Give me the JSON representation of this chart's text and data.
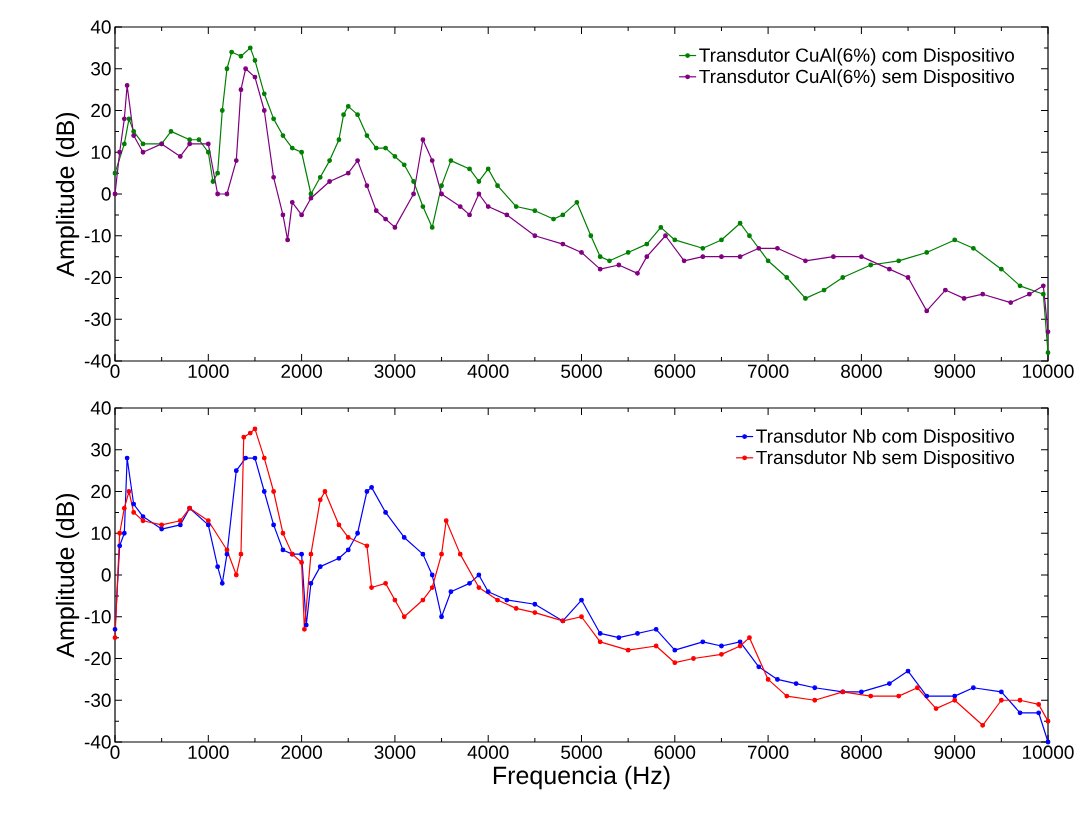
{
  "chart_data": [
    {
      "type": "line",
      "ylabel": "Amplitude (dB)",
      "xlim": [
        0,
        10000
      ],
      "ylim": [
        -40,
        40
      ],
      "xticks": [
        0,
        1000,
        2000,
        3000,
        4000,
        5000,
        6000,
        7000,
        8000,
        9000,
        10000
      ],
      "yticks": [
        -40,
        -30,
        -20,
        -10,
        0,
        10,
        20,
        30,
        40
      ],
      "legend": "top right",
      "marker": "circle",
      "grid": false,
      "series": [
        {
          "name": "Transdutor CuAl(6%) com Dispositivo",
          "color": "#008000",
          "x": [
            0,
            100,
            150,
            200,
            300,
            500,
            600,
            800,
            900,
            1000,
            1050,
            1100,
            1150,
            1200,
            1250,
            1350,
            1450,
            1500,
            1600,
            1700,
            1800,
            1900,
            2000,
            2100,
            2200,
            2300,
            2400,
            2450,
            2500,
            2600,
            2700,
            2800,
            2900,
            3000,
            3100,
            3200,
            3300,
            3400,
            3500,
            3600,
            3800,
            3900,
            4000,
            4100,
            4300,
            4500,
            4700,
            4800,
            4950,
            5100,
            5200,
            5300,
            5500,
            5700,
            5850,
            6000,
            6300,
            6500,
            6700,
            6800,
            7000,
            7200,
            7400,
            7600,
            7800,
            8100,
            8400,
            8700,
            9000,
            9200,
            9500,
            9700,
            9950,
            10000
          ],
          "values": [
            5,
            12,
            18,
            15,
            12,
            12,
            15,
            13,
            13,
            10,
            3,
            5,
            20,
            30,
            34,
            33,
            35,
            32,
            24,
            18,
            14,
            11,
            10,
            0,
            4,
            8,
            13,
            19,
            21,
            19,
            14,
            11,
            11,
            9,
            7,
            3,
            -3,
            -8,
            2,
            8,
            6,
            3,
            6,
            2,
            -3,
            -4,
            -6,
            -5,
            -2,
            -10,
            -15,
            -16,
            -14,
            -12,
            -8,
            -11,
            -13,
            -11,
            -7,
            -10,
            -16,
            -20,
            -25,
            -23,
            -20,
            -17,
            -16,
            -14,
            -11,
            -13,
            -18,
            -22,
            -24,
            -38
          ]
        },
        {
          "name": "Transdutor CuAl(6%) sem Dispositivo",
          "color": "#800080",
          "x": [
            0,
            50,
            100,
            130,
            200,
            300,
            500,
            700,
            800,
            1000,
            1100,
            1200,
            1300,
            1350,
            1400,
            1500,
            1600,
            1700,
            1800,
            1850,
            1900,
            2000,
            2100,
            2300,
            2500,
            2600,
            2700,
            2800,
            2900,
            3000,
            3200,
            3300,
            3400,
            3500,
            3700,
            3800,
            3900,
            4000,
            4200,
            4500,
            4800,
            5000,
            5200,
            5400,
            5600,
            5700,
            5900,
            6100,
            6300,
            6500,
            6700,
            6900,
            7100,
            7400,
            7700,
            8000,
            8300,
            8500,
            8700,
            8900,
            9100,
            9300,
            9600,
            9800,
            9950,
            10000
          ],
          "values": [
            0,
            10,
            18,
            26,
            14,
            10,
            12,
            9,
            12,
            12,
            0,
            0,
            8,
            25,
            30,
            28,
            20,
            4,
            -5,
            -11,
            -2,
            -5,
            -1,
            3,
            5,
            8,
            2,
            -4,
            -6,
            -8,
            0,
            13,
            8,
            0,
            -3,
            -5,
            0,
            -3,
            -5,
            -10,
            -12,
            -14,
            -18,
            -17,
            -19,
            -15,
            -10,
            -16,
            -15,
            -15,
            -15,
            -13,
            -13,
            -16,
            -15,
            -15,
            -18,
            -20,
            -28,
            -23,
            -25,
            -24,
            -26,
            -24,
            -22,
            -33
          ]
        }
      ]
    },
    {
      "type": "line",
      "xlabel": "Frequencia (Hz)",
      "ylabel": "Amplitude (dB)",
      "xlim": [
        0,
        10000
      ],
      "ylim": [
        -40,
        40
      ],
      "xticks": [
        0,
        1000,
        2000,
        3000,
        4000,
        5000,
        6000,
        7000,
        8000,
        9000,
        10000
      ],
      "yticks": [
        -40,
        -30,
        -20,
        -10,
        0,
        10,
        20,
        30,
        40
      ],
      "legend": "top right",
      "marker": "circle",
      "grid": false,
      "series": [
        {
          "name": "Transdutor Nb com Dispositivo",
          "color": "#0000ff",
          "x": [
            0,
            50,
            100,
            130,
            200,
            300,
            500,
            700,
            800,
            1000,
            1100,
            1150,
            1200,
            1300,
            1400,
            1500,
            1600,
            1700,
            1800,
            1900,
            2000,
            2050,
            2100,
            2200,
            2400,
            2500,
            2600,
            2700,
            2750,
            2900,
            3100,
            3300,
            3400,
            3500,
            3600,
            3800,
            3900,
            4000,
            4200,
            4500,
            4800,
            5000,
            5200,
            5400,
            5600,
            5800,
            6000,
            6300,
            6500,
            6700,
            6900,
            7100,
            7300,
            7500,
            7800,
            8000,
            8300,
            8500,
            8700,
            9000,
            9200,
            9500,
            9700,
            9900,
            10000
          ],
          "values": [
            -13,
            7,
            10,
            28,
            17,
            14,
            11,
            12,
            16,
            12,
            2,
            -2,
            5,
            25,
            28,
            28,
            20,
            12,
            6,
            5,
            5,
            -12,
            -2,
            2,
            4,
            6,
            10,
            20,
            21,
            15,
            9,
            5,
            0,
            -10,
            -4,
            -2,
            0,
            -4,
            -6,
            -7,
            -11,
            -6,
            -14,
            -15,
            -14,
            -13,
            -18,
            -16,
            -17,
            -16,
            -22,
            -25,
            -26,
            -27,
            -28,
            -28,
            -26,
            -23,
            -29,
            -29,
            -27,
            -28,
            -33,
            -33,
            -40
          ]
        },
        {
          "name": "Transdutor Nb sem Dispositivo",
          "color": "#ff0000",
          "x": [
            0,
            50,
            100,
            150,
            200,
            300,
            500,
            700,
            800,
            1000,
            1200,
            1300,
            1350,
            1380,
            1450,
            1500,
            1600,
            1700,
            1800,
            1900,
            2000,
            2030,
            2100,
            2200,
            2250,
            2400,
            2500,
            2700,
            2750,
            2900,
            3000,
            3100,
            3300,
            3400,
            3500,
            3550,
            3700,
            3900,
            4100,
            4300,
            4500,
            4800,
            5000,
            5200,
            5500,
            5800,
            6000,
            6200,
            6500,
            6700,
            6800,
            7000,
            7200,
            7500,
            7800,
            8100,
            8400,
            8600,
            8800,
            9000,
            9300,
            9500,
            9700,
            9900,
            10000
          ],
          "values": [
            -15,
            10,
            16,
            20,
            15,
            13,
            12,
            13,
            16,
            13,
            6,
            0,
            5,
            33,
            34,
            35,
            28,
            20,
            10,
            5,
            3,
            -13,
            5,
            18,
            20,
            12,
            9,
            7,
            -3,
            -2,
            -6,
            -10,
            -6,
            -3,
            5,
            13,
            5,
            -3,
            -6,
            -8,
            -9,
            -11,
            -10,
            -16,
            -18,
            -17,
            -21,
            -20,
            -19,
            -17,
            -15,
            -25,
            -29,
            -30,
            -28,
            -29,
            -29,
            -27,
            -32,
            -30,
            -36,
            -30,
            -30,
            -31,
            -35
          ]
        }
      ]
    }
  ]
}
